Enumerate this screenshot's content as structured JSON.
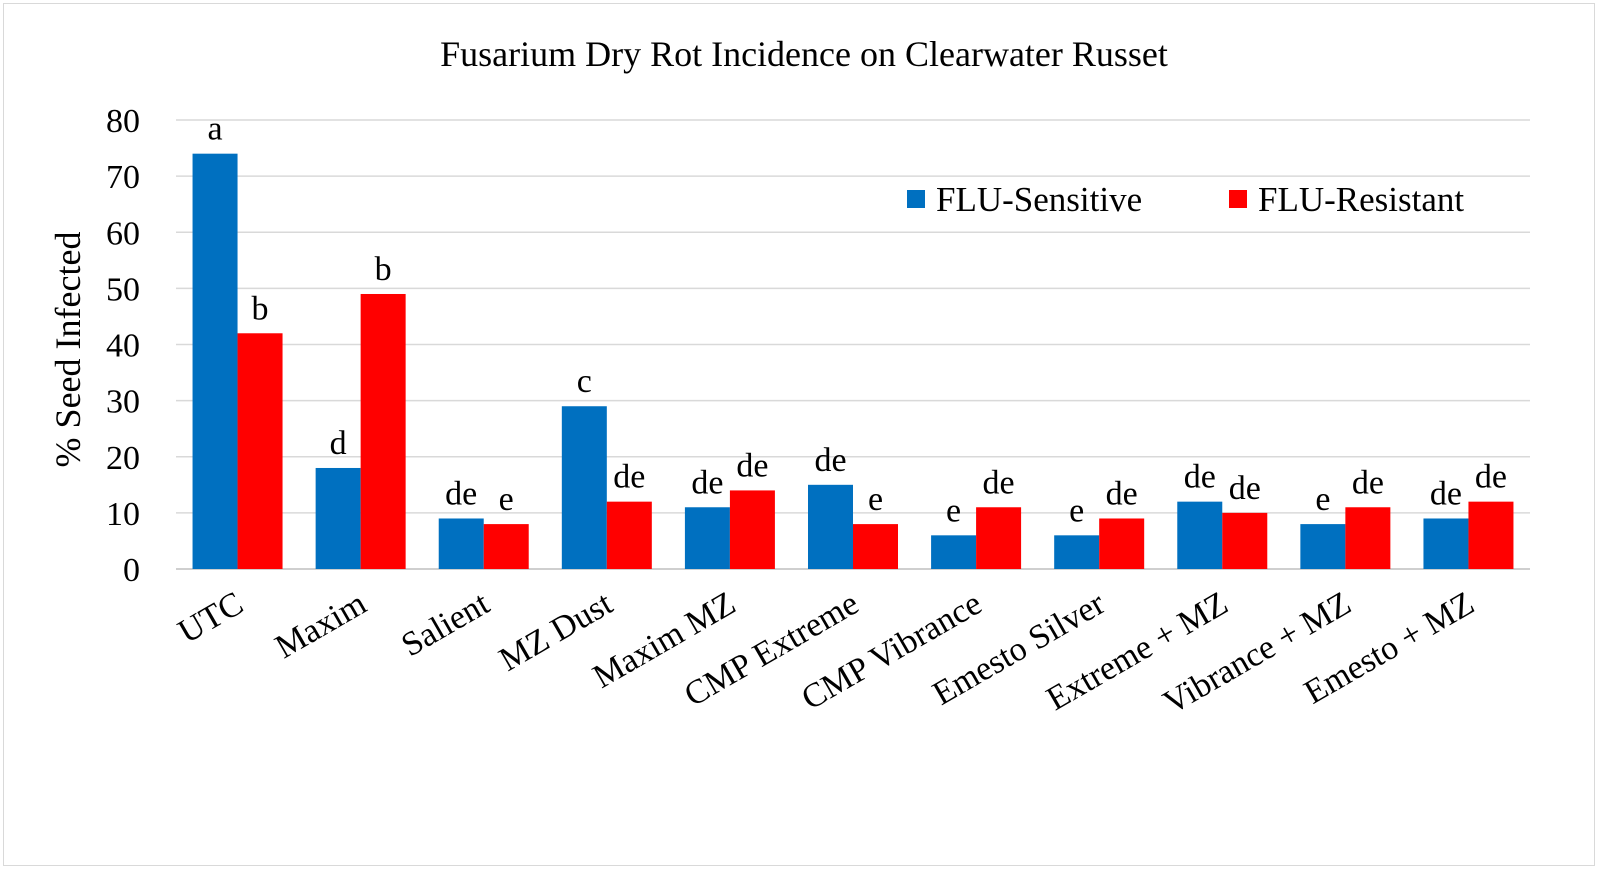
{
  "chart_data": {
    "type": "bar",
    "title": "Fusarium Dry Rot Incidence on Clearwater Russet",
    "ylabel": "% Seed Infected",
    "xlabel": "",
    "ylim": [
      0,
      80
    ],
    "yticks": [
      "0",
      "10",
      "20",
      "30",
      "40",
      "50",
      "60",
      "70",
      "80"
    ],
    "grid": true,
    "legend_position": "top-right",
    "categories": [
      "UTC",
      "Maxim",
      "Salient",
      "MZ Dust",
      "Maxim MZ",
      "CMP Extreme",
      "CMP Vibrance",
      "Emesto Silver",
      "Extreme + MZ",
      "Vibrance + MZ",
      "Emesto + MZ"
    ],
    "series": [
      {
        "name": "FLU-Sensitive",
        "color": "#0070c0",
        "values": [
          74,
          18,
          9,
          29,
          11,
          15,
          6,
          6,
          12,
          8,
          9
        ],
        "labels": [
          "a",
          "d",
          "de",
          "c",
          "de",
          "de",
          "e",
          "e",
          "de",
          "e",
          "de"
        ]
      },
      {
        "name": "FLU-Resistant",
        "color": "#ff0000",
        "values": [
          42,
          49,
          8,
          12,
          14,
          8,
          11,
          9,
          10,
          11,
          12
        ],
        "labels": [
          "b",
          "b",
          "e",
          "de",
          "de",
          "e",
          "de",
          "de",
          "de",
          "de",
          "de"
        ]
      }
    ]
  }
}
